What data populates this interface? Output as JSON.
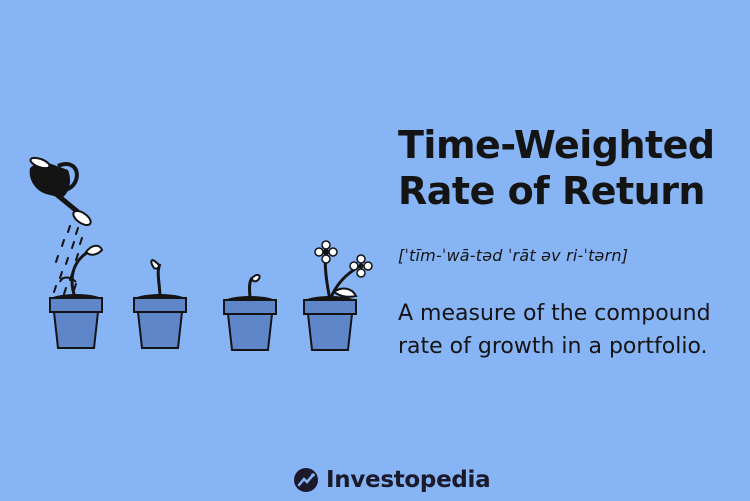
{
  "title": {
    "line1": "Time-Weighted",
    "line2": "Rate of Return"
  },
  "pronunciation": "[ˈtīm-ˈwā-təd ˈrāt əv ri-ˈtərn]",
  "definition": "A measure of the compound rate of growth in a portfolio.",
  "logo": {
    "text": "Investopedia",
    "icon": "investopedia-logo-icon"
  },
  "illustration": {
    "icons": [
      "watering-can-icon",
      "plant-pot-icon",
      "sprout-icon",
      "flower-icon"
    ]
  },
  "colors": {
    "background": "#87b4f5",
    "pot": "#5f86c8",
    "ink": "#141414"
  }
}
